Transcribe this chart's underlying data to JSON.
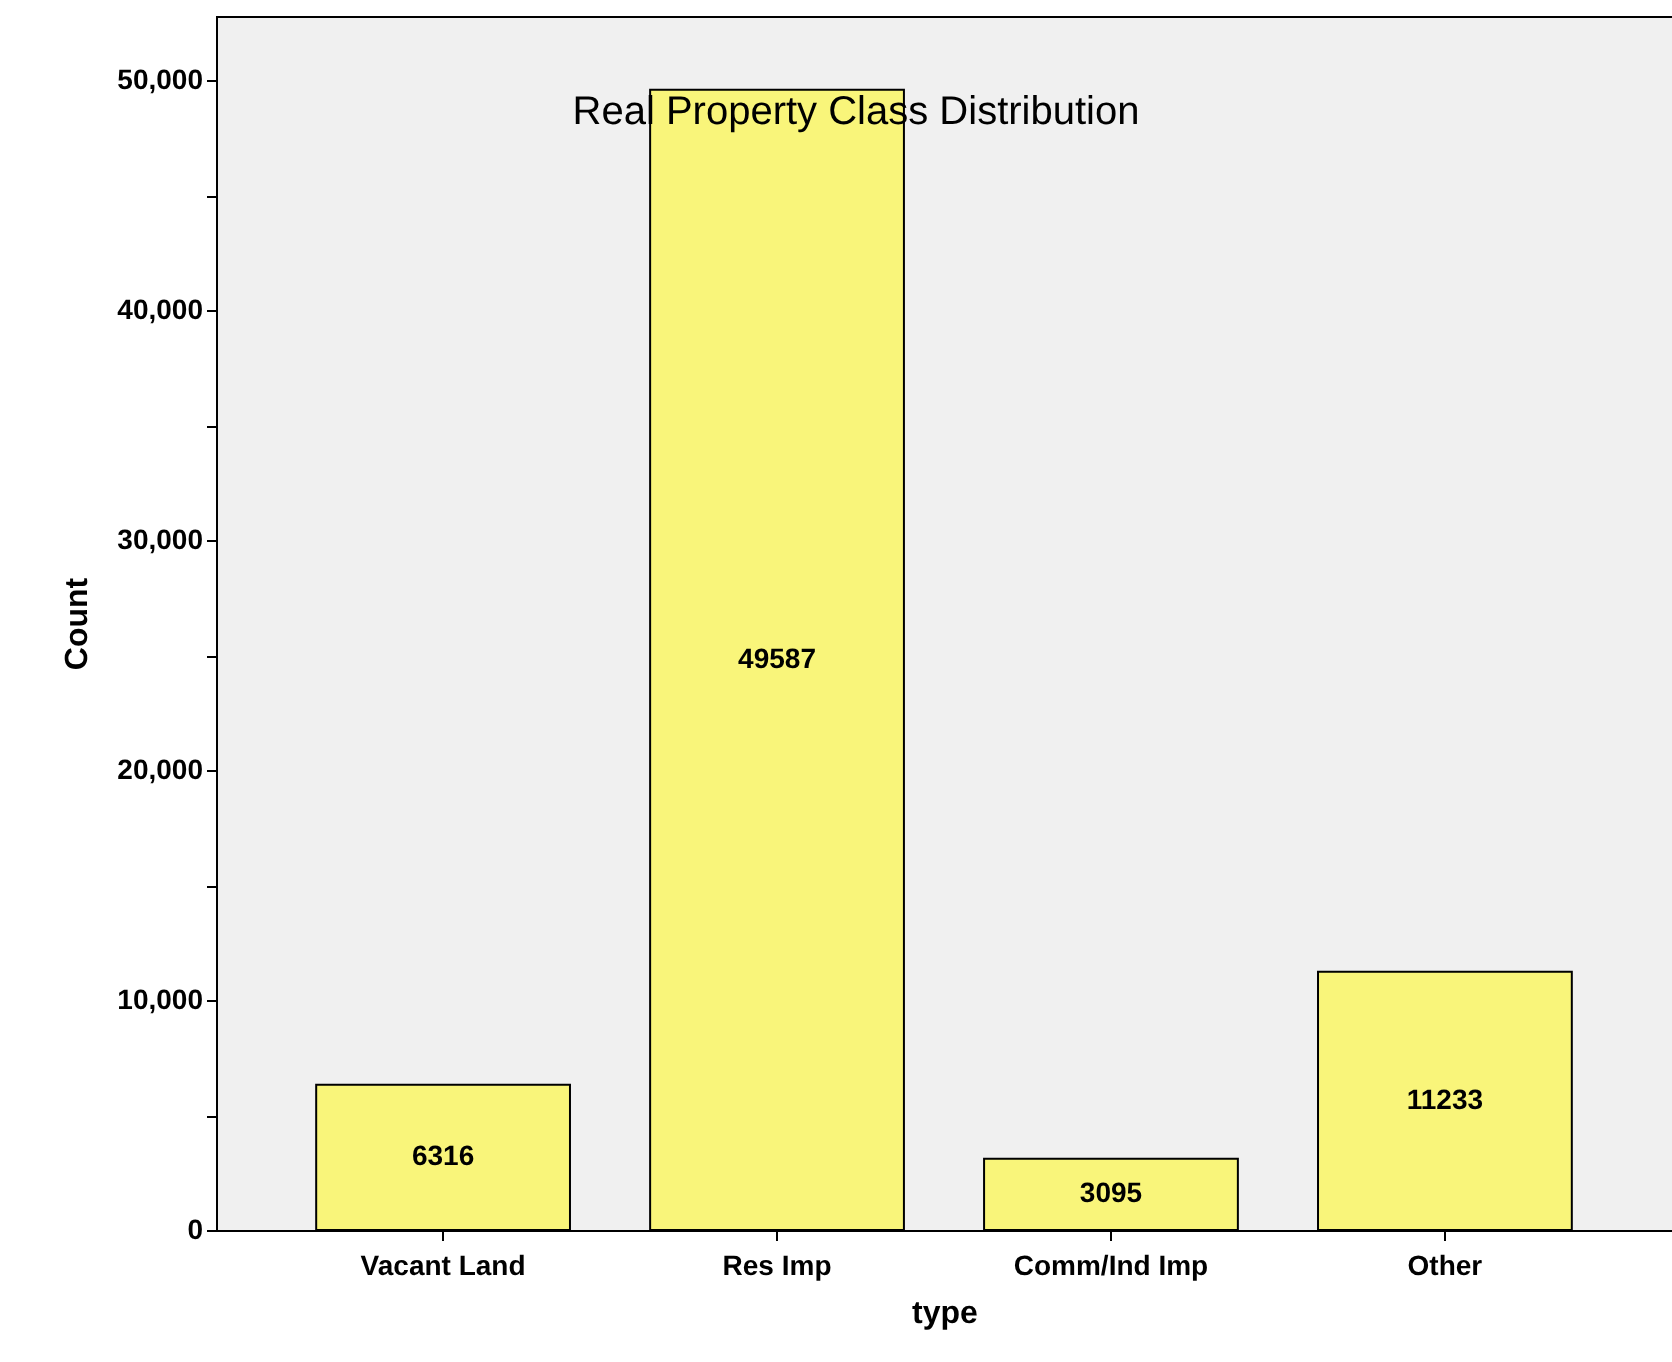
{
  "chart_data": {
    "type": "bar",
    "title": "Real Property Class Distribution",
    "xlabel": "type",
    "ylabel": "Count",
    "categories": [
      "Vacant Land",
      "Res Imp",
      "Comm/Ind Imp",
      "Other"
    ],
    "values": [
      6316,
      49587,
      3095,
      11233
    ],
    "color": "#f9f57a",
    "data_labels": true,
    "grid": false,
    "ylim": [
      0,
      52800
    ],
    "yticks": [
      0,
      {
        "value": 5000,
        "label": null
      },
      {
        "value": 10000,
        "label": "10,000"
      },
      {
        "value": 15000,
        "label": null
      },
      {
        "value": 20000,
        "label": "20,000"
      },
      {
        "value": 25000,
        "label": null
      },
      {
        "value": 30000,
        "label": "30,000"
      },
      {
        "value": 35000,
        "label": null
      },
      {
        "value": 40000,
        "label": "40,000"
      },
      {
        "value": 45000,
        "label": null
      },
      {
        "value": 50000,
        "label": "50,000"
      }
    ]
  }
}
